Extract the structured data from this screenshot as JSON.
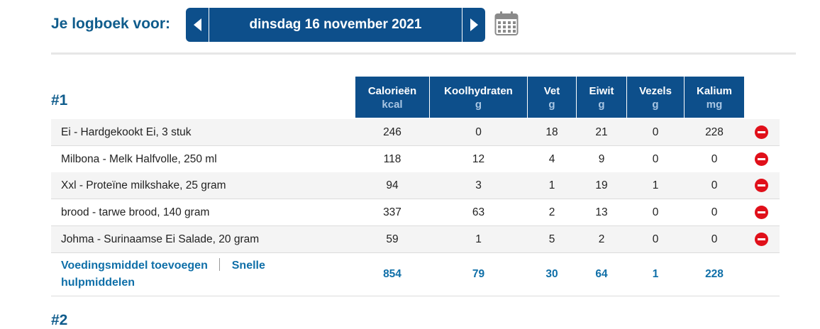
{
  "header": {
    "title": "Je logboek voor:",
    "date": "dinsdag 16 november 2021"
  },
  "meal1": {
    "title": "#1",
    "columns": [
      {
        "name": "Calorieën",
        "unit": "kcal"
      },
      {
        "name": "Koolhydraten",
        "unit": "g"
      },
      {
        "name": "Vet",
        "unit": "g"
      },
      {
        "name": "Eiwit",
        "unit": "g"
      },
      {
        "name": "Vezels",
        "unit": "g"
      },
      {
        "name": "Kalium",
        "unit": "mg"
      }
    ],
    "rows": [
      {
        "name": "Ei - Hardgekookt Ei, 3 stuk",
        "values": [
          "246",
          "0",
          "18",
          "21",
          "0",
          "228"
        ]
      },
      {
        "name": "Milbona - Melk Halfvolle, 250 ml",
        "values": [
          "118",
          "12",
          "4",
          "9",
          "0",
          "0"
        ]
      },
      {
        "name": "Xxl - Proteïne milkshake, 25 gram",
        "values": [
          "94",
          "3",
          "1",
          "19",
          "1",
          "0"
        ]
      },
      {
        "name": "brood - tarwe brood, 140 gram",
        "values": [
          "337",
          "63",
          "2",
          "13",
          "0",
          "0"
        ]
      },
      {
        "name": "Johma - Surinaamse Ei Salade, 20 gram",
        "values": [
          "59",
          "1",
          "5",
          "2",
          "0",
          "0"
        ]
      }
    ],
    "add_food_link": "Voedingsmiddel toevoegen",
    "quick_tools_link": "Snelle hulpmiddelen",
    "totals": [
      "854",
      "79",
      "30",
      "64",
      "1",
      "228"
    ]
  },
  "meal2": {
    "title": "#2"
  }
}
